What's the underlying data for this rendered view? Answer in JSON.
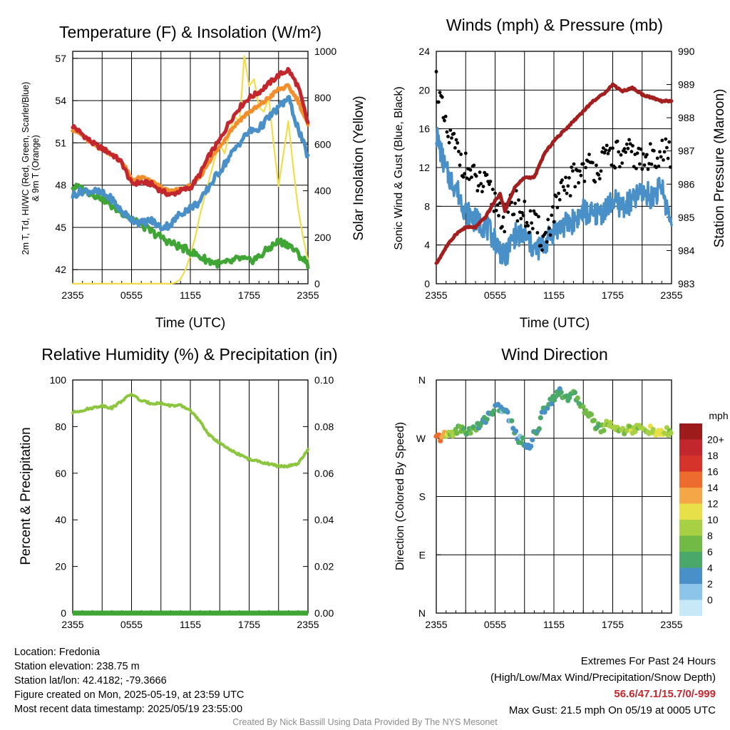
{
  "chart_data": [
    {
      "type": "line",
      "title": "Temperature (F) & Insolation (W/m²)",
      "xlabel": "Time (UTC)",
      "ylabel": "2m T, Td, HI/WC (Red, Green, Scarlet/Blue) & 9m T (Orange)",
      "y2label": "Solar Insolation (Yellow)",
      "x_ticks": [
        "2355",
        "0555",
        "1155",
        "1755",
        "2355"
      ],
      "ylim": [
        41,
        57.5
      ],
      "y_ticks": [
        42,
        45,
        48,
        51,
        54,
        57
      ],
      "y2lim": [
        0,
        1000
      ],
      "y2_ticks": [
        0,
        200,
        400,
        600,
        800,
        1000
      ],
      "series": [
        {
          "name": "2m T",
          "color": "#c1272d",
          "axis": "left",
          "x_hours": [
            0,
            1,
            2,
            3,
            4,
            5,
            6,
            7,
            8,
            9,
            10,
            11,
            12,
            13,
            14,
            15,
            16,
            17,
            18,
            19,
            20,
            21,
            22,
            23,
            24
          ],
          "values": [
            52.2,
            51.6,
            51.0,
            50.6,
            50.2,
            49.6,
            48.1,
            48.2,
            48.1,
            47.6,
            47.3,
            47.6,
            47.8,
            48.8,
            50.2,
            51.2,
            52.5,
            53.5,
            54.2,
            54.6,
            55.2,
            55.8,
            56.2,
            55.0,
            52.4
          ]
        },
        {
          "name": "9m T",
          "color": "#f28e2b",
          "axis": "left",
          "x_hours": [
            0,
            1,
            2,
            3,
            4,
            5,
            6,
            7,
            8,
            9,
            10,
            11,
            12,
            13,
            14,
            15,
            16,
            17,
            18,
            19,
            20,
            21,
            22,
            23,
            24
          ],
          "values": [
            52.0,
            51.5,
            50.9,
            50.6,
            50.2,
            49.7,
            48.4,
            48.5,
            48.3,
            47.8,
            47.5,
            47.7,
            47.9,
            48.6,
            49.8,
            50.7,
            51.8,
            52.6,
            53.2,
            53.6,
            54.2,
            54.8,
            55.0,
            54.0,
            52.2
          ]
        },
        {
          "name": "Td",
          "color": "#3fa535",
          "axis": "left",
          "x_hours": [
            0,
            1,
            2,
            3,
            4,
            5,
            6,
            7,
            8,
            9,
            10,
            11,
            12,
            13,
            14,
            15,
            16,
            17,
            18,
            19,
            20,
            21,
            22,
            23,
            24
          ],
          "values": [
            47.9,
            47.7,
            47.4,
            47.1,
            46.5,
            46.1,
            45.6,
            45.2,
            44.7,
            44.3,
            43.9,
            43.6,
            43.3,
            42.9,
            42.6,
            42.4,
            42.5,
            42.8,
            42.6,
            42.9,
            43.5,
            44.0,
            43.8,
            43.1,
            42.4
          ]
        },
        {
          "name": "HI/WC",
          "color": "#4a90c8",
          "axis": "left",
          "x_hours": [
            0,
            1,
            2,
            3,
            4,
            5,
            6,
            7,
            8,
            9,
            10,
            11,
            12,
            13,
            14,
            15,
            16,
            17,
            18,
            19,
            20,
            21,
            22,
            23,
            24
          ],
          "values": [
            47.3,
            47.6,
            47.6,
            47.4,
            47.0,
            46.1,
            45.6,
            45.3,
            45.5,
            45.0,
            45.2,
            46.0,
            46.4,
            46.8,
            48.0,
            49.0,
            50.0,
            51.0,
            51.8,
            52.0,
            52.8,
            53.5,
            54.2,
            52.0,
            50.0
          ]
        },
        {
          "name": "Solar Insolation",
          "color": "#f2dc4b",
          "axis": "right",
          "x_hours": [
            0,
            2,
            4,
            6,
            8,
            9,
            10,
            10.5,
            11,
            11.5,
            12,
            12.5,
            13,
            13.5,
            14,
            14.5,
            15,
            15.5,
            16,
            16.5,
            17,
            17.3,
            17.5,
            18,
            18.5,
            19,
            19.5,
            20,
            20.5,
            21,
            21.5,
            22,
            22.5,
            23,
            23.5,
            24
          ],
          "values": [
            0,
            0,
            0,
            0,
            0,
            0,
            0,
            5,
            20,
            60,
            120,
            200,
            300,
            380,
            460,
            540,
            600,
            560,
            650,
            720,
            700,
            850,
            980,
            850,
            880,
            760,
            740,
            800,
            600,
            420,
            560,
            700,
            500,
            320,
            200,
            100
          ]
        }
      ]
    },
    {
      "type": "scatter",
      "title": "Winds (mph) & Pressure (mb)",
      "xlabel": "Time (UTC)",
      "ylabel": "Sonic Wind & Gust (Blue, Black)",
      "y2label": "Station Pressure (Maroon)",
      "x_ticks": [
        "2355",
        "0555",
        "1155",
        "1755",
        "2355"
      ],
      "ylim": [
        0,
        24
      ],
      "y_ticks": [
        0,
        4,
        8,
        12,
        16,
        20,
        24
      ],
      "y2lim": [
        983,
        990
      ],
      "y2_ticks": [
        983,
        984,
        985,
        986,
        987,
        988,
        989,
        990
      ],
      "series": [
        {
          "name": "Sonic Wind",
          "color": "#4a90c8",
          "axis": "left",
          "x_hours": [
            0,
            1,
            2,
            3,
            4,
            5,
            6,
            7,
            7.5,
            8,
            9,
            10,
            11,
            12,
            13,
            14,
            15,
            16,
            17,
            18,
            19,
            20,
            21,
            22,
            23,
            24
          ],
          "values": [
            15.5,
            11.5,
            10.0,
            7.5,
            6.5,
            6.0,
            4.5,
            2.5,
            4.0,
            5.0,
            5.0,
            3.5,
            4.0,
            5.5,
            6.0,
            6.5,
            7.5,
            7.0,
            7.5,
            8.5,
            8.0,
            8.5,
            9.5,
            9.0,
            10.0,
            6.0
          ]
        },
        {
          "name": "Gust",
          "color": "#000000",
          "axis": "left",
          "x_hours": [
            0,
            1,
            2,
            3,
            4,
            5,
            6,
            7,
            8,
            9,
            10,
            11,
            12,
            13,
            14,
            15,
            16,
            17,
            18,
            19,
            20,
            21,
            22,
            23,
            24
          ],
          "values": [
            21.0,
            15.5,
            14.0,
            12.0,
            10.5,
            10.0,
            8.5,
            6.5,
            8.5,
            7.0,
            6.0,
            4.5,
            7.5,
            9.5,
            11.0,
            12.0,
            12.0,
            12.5,
            13.5,
            13.0,
            13.5,
            12.5,
            13.0,
            14.0,
            13.0
          ]
        },
        {
          "name": "Station Pressure",
          "color": "#a31f1f",
          "axis": "right",
          "x_hours": [
            0,
            1,
            2,
            3,
            4,
            5,
            6,
            6.5,
            7,
            8,
            9,
            10,
            11,
            12,
            13,
            14,
            15,
            16,
            17,
            18,
            19,
            20,
            21,
            22,
            23,
            24
          ],
          "values": [
            983.6,
            984.1,
            984.5,
            984.7,
            984.7,
            985.0,
            985.5,
            985.7,
            985.2,
            985.9,
            986.2,
            986.2,
            986.9,
            987.3,
            987.6,
            987.9,
            988.2,
            988.5,
            988.7,
            989.0,
            988.8,
            988.9,
            988.7,
            988.6,
            988.5,
            988.5
          ]
        }
      ]
    },
    {
      "type": "line",
      "title": "Relative Humidity (%) & Precipitation (in)",
      "xlabel": "",
      "ylabel": "Percent & Precipitation",
      "x_ticks": [
        "2355",
        "0555",
        "1155",
        "1755",
        "2355"
      ],
      "ylim": [
        0,
        100
      ],
      "y_ticks": [
        0,
        20,
        40,
        60,
        80,
        100
      ],
      "y2lim": [
        0,
        0.1
      ],
      "y2_ticks": [
        "0.00",
        "0.02",
        "0.04",
        "0.06",
        "0.08",
        "0.10"
      ],
      "series": [
        {
          "name": "Relative Humidity",
          "color": "#8cc63f",
          "axis": "left",
          "x_hours": [
            0,
            1,
            2,
            3,
            4,
            5,
            6,
            7,
            8,
            9,
            10,
            11,
            12,
            13,
            14,
            15,
            16,
            17,
            18,
            19,
            20,
            21,
            22,
            23,
            24
          ],
          "values": [
            86,
            87,
            88,
            89,
            88,
            91,
            94,
            91,
            90,
            90,
            89,
            89,
            87,
            82,
            76,
            73,
            70,
            68,
            66,
            65,
            64,
            63,
            63,
            64,
            70
          ]
        },
        {
          "name": "Precipitation",
          "color": "#3fa535",
          "axis": "right",
          "x_hours": [
            0,
            24
          ],
          "values": [
            0,
            0
          ]
        }
      ]
    },
    {
      "type": "scatter",
      "title": "Wind Direction",
      "xlabel": "",
      "ylabel": "Direction (Colored By Speed)",
      "x_ticks": [
        "2355",
        "0555",
        "1155",
        "1755",
        "2355"
      ],
      "y_ticks": [
        "N",
        "E",
        "S",
        "W",
        "N"
      ],
      "points_hours": [
        0,
        0.5,
        1,
        1.5,
        2,
        2.5,
        3,
        3.5,
        4,
        4.5,
        5,
        5.5,
        6,
        6.5,
        7,
        7.5,
        8,
        8.5,
        9,
        9.5,
        10,
        10.5,
        11,
        11.5,
        12,
        12.5,
        13,
        13.5,
        14,
        14.5,
        15,
        15.5,
        16,
        16.5,
        17,
        17.5,
        18,
        18.5,
        19,
        19.5,
        20,
        20.5,
        21,
        21.5,
        22,
        22.5,
        23,
        23.5,
        24
      ],
      "points_dir_deg": [
        270,
        272,
        274,
        278,
        282,
        285,
        280,
        283,
        285,
        290,
        300,
        310,
        315,
        318,
        312,
        300,
        280,
        268,
        262,
        258,
        276,
        290,
        315,
        325,
        335,
        340,
        338,
        334,
        336,
        328,
        318,
        310,
        295,
        288,
        285,
        295,
        290,
        285,
        280,
        288,
        282,
        286,
        283,
        285,
        280,
        278,
        275,
        280,
        282
      ],
      "points_speed": [
        16,
        14,
        10,
        9,
        7,
        7,
        6,
        6,
        5,
        5,
        4,
        4,
        3,
        3,
        4,
        3,
        4,
        3,
        3,
        3,
        4,
        4,
        4,
        4,
        5,
        5,
        5,
        6,
        6,
        6,
        6,
        7,
        7,
        7,
        7,
        8,
        8,
        8,
        8,
        9,
        9,
        9,
        10,
        9,
        9,
        10,
        10,
        9,
        8
      ],
      "colorbar": {
        "label": "mph",
        "levels": [
          "0",
          "2",
          "4",
          "6",
          "8",
          "10",
          "12",
          "14",
          "16",
          "18",
          "20+"
        ],
        "colors": [
          "#c6e8f7",
          "#8cc4ea",
          "#4a90c8",
          "#4aa86a",
          "#70ba45",
          "#a8d045",
          "#e8e048",
          "#f5a646",
          "#ee6b2e",
          "#d6332a",
          "#c1272d",
          "#9e1b1b"
        ]
      }
    }
  ],
  "info": {
    "location": "Location: Fredonia",
    "elevation": "Station elevation: 238.75 m",
    "latlon": "Station lat/lon: 42.4182; -79.3666",
    "created": "Figure created on Mon, 2025-05-19, at 23:59 UTC",
    "recent": "Most recent data timestamp: 2025/05/19 23:55:00"
  },
  "extremes": {
    "heading": "Extremes For Past 24 Hours",
    "subheading": "(High/Low/Max Wind/Precipitation/Snow Depth)",
    "values": "56.6/47.1/15.7/0/-999",
    "values_color": "#c1272d",
    "gust": "Max Gust: 21.5 mph On 05/19 at 0005 UTC"
  },
  "credit": "Created By Nick Bassill Using Data Provided By The NYS Mesonet"
}
